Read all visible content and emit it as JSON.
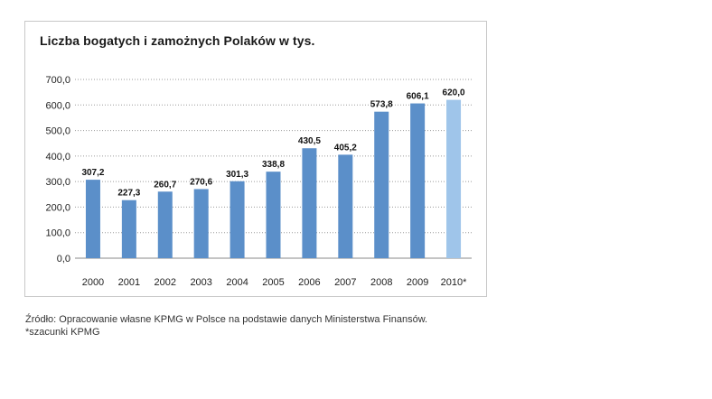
{
  "chart_data": {
    "type": "bar",
    "title": "Liczba bogatych i zamożnych Polaków w tys.",
    "categories": [
      "2000",
      "2001",
      "2002",
      "2003",
      "2004",
      "2005",
      "2006",
      "2007",
      "2008",
      "2009",
      "2010*"
    ],
    "values": [
      307.2,
      227.3,
      260.7,
      270.6,
      301.3,
      338.8,
      430.5,
      405.2,
      573.8,
      606.1,
      620.0
    ],
    "value_labels": [
      "307,2",
      "227,3",
      "260,7",
      "270,6",
      "301,3",
      "338,8",
      "430,5",
      "405,2",
      "573,8",
      "606,1",
      "620,0"
    ],
    "ylim": [
      0,
      700
    ],
    "yticks": [
      0,
      100,
      200,
      300,
      400,
      500,
      600,
      700
    ],
    "ytick_labels": [
      "0,0",
      "100,0",
      "200,0",
      "300,0",
      "400,0",
      "500,0",
      "600,0",
      "700,0"
    ],
    "grid": true,
    "bar_color": "#5b8fc9",
    "highlight_color": "#9fc5ea",
    "highlight_index": 10,
    "xlabel": "",
    "ylabel": ""
  },
  "footnotes": {
    "source": "Źródło: Opracowanie własne KPMG w Polsce na podstawie danych Ministerstwa Finansów.",
    "estimate": "*szacunki KPMG"
  }
}
